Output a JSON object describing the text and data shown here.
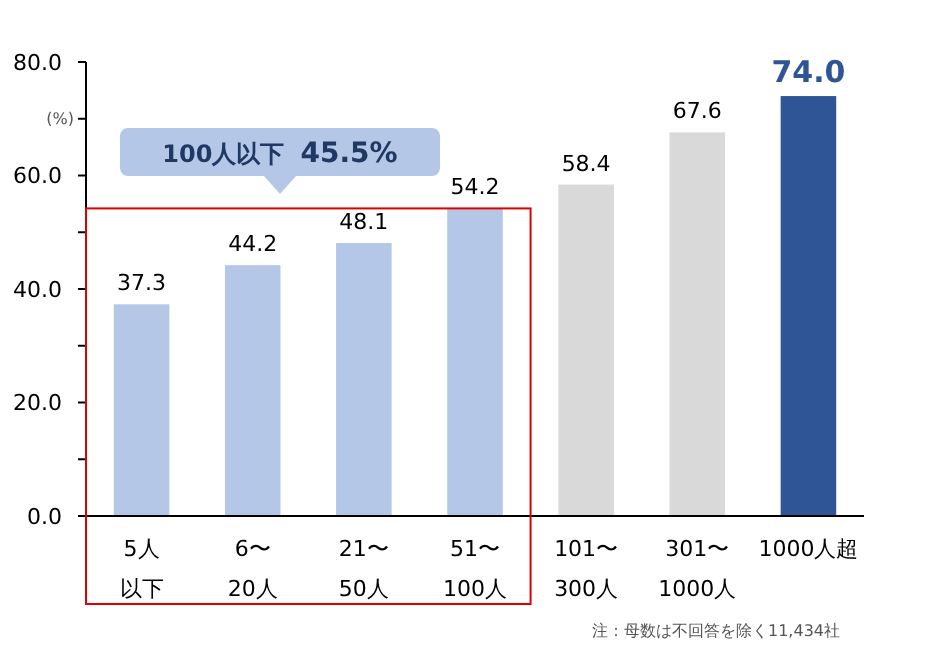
{
  "chart_data": {
    "type": "bar",
    "ylabel": "(%)",
    "categories": [
      "5人以下",
      "6〜20人",
      "21〜50人",
      "51〜100人",
      "101〜300人",
      "301〜1000人",
      "1000人超"
    ],
    "values": [
      37.3,
      44.2,
      48.1,
      54.2,
      58.4,
      67.6,
      74.0
    ],
    "colors": [
      "#b4c7e7",
      "#b4c7e7",
      "#b4c7e7",
      "#b4c7e7",
      "#d9d9d9",
      "#d9d9d9",
      "#2f5597"
    ],
    "value_labels": [
      "37.3",
      "44.2",
      "48.1",
      "54.2",
      "58.4",
      "67.6",
      "74.0"
    ],
    "ylim": [
      0,
      80
    ],
    "yticks": [
      {
        "value": 0,
        "label": "0.0"
      },
      {
        "value": 10,
        "label": null
      },
      {
        "value": 20,
        "label": "20.0"
      },
      {
        "value": 30,
        "label": null
      },
      {
        "value": 40,
        "label": "40.0"
      },
      {
        "value": 50,
        "label": null
      },
      {
        "value": 60,
        "label": "60.0"
      },
      {
        "value": 70,
        "label": null
      },
      {
        "value": 80,
        "label": "80.0"
      }
    ],
    "grid": false,
    "annotations": [
      "100人以下 45.5%",
      "注：母数は不回答を除く11,434社"
    ]
  }
}
